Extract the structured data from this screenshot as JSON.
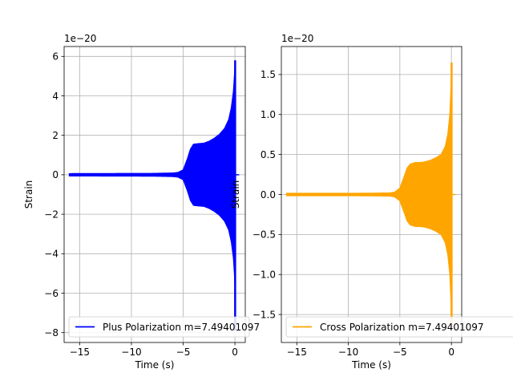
{
  "chart_data": [
    {
      "type": "line",
      "title": "",
      "xlabel": "Time (s)",
      "ylabel": "Strain",
      "scale_label": "1e−20",
      "xlim": [
        -16.5,
        1.0
      ],
      "ylim": [
        -8.5,
        6.5
      ],
      "xticks": [
        -15,
        -10,
        -5,
        0
      ],
      "xtick_labels": [
        "−15",
        "−10",
        "−5",
        "0"
      ],
      "yticks": [
        -8,
        -6,
        -4,
        -2,
        0,
        2,
        4,
        6
      ],
      "ytick_labels": [
        "−8",
        "−6",
        "−4",
        "−2",
        "0",
        "2",
        "4",
        "6"
      ],
      "grid": true,
      "legend_position": "lower-left",
      "color": "#0000ff",
      "series": [
        {
          "name": "Plus Polarization m=7.49401097",
          "envelope": {
            "x": [
              -16,
              -8,
              -6,
              -5.5,
              -5,
              -4.6,
              -4.3,
              -4,
              -3.5,
              -3,
              -2.5,
              -2,
              -1.5,
              -1,
              -0.6,
              -0.35,
              -0.15,
              -0.05,
              0.02
            ],
            "amp": [
              0.06,
              0.07,
              0.09,
              0.12,
              0.25,
              0.8,
              1.3,
              1.55,
              1.58,
              1.6,
              1.7,
              1.85,
              2.05,
              2.35,
              2.8,
              3.4,
              4.2,
              5.0,
              5.8
            ]
          },
          "min_value": -7.9,
          "peak_time": 0.02
        }
      ]
    },
    {
      "type": "line",
      "title": "",
      "xlabel": "Time (s)",
      "ylabel": "Strain",
      "scale_label": "1e−20",
      "xlim": [
        -16.5,
        1.0
      ],
      "ylim": [
        -1.85,
        1.85
      ],
      "xticks": [
        -15,
        -10,
        -5,
        0
      ],
      "xtick_labels": [
        "−15",
        "−10",
        "−5",
        "0"
      ],
      "yticks": [
        -1.5,
        -1.0,
        -0.5,
        0.0,
        0.5,
        1.0,
        1.5
      ],
      "ytick_labels": [
        "−1.5",
        "−1.0",
        "−0.5",
        "0.0",
        "0.5",
        "1.0",
        "1.5"
      ],
      "grid": true,
      "legend_position": "lower-left",
      "color": "#ffa500",
      "series": [
        {
          "name": "Cross Polarization m=7.49401097",
          "envelope": {
            "x": [
              -16,
              -8,
              -6,
              -5.5,
              -5,
              -4.6,
              -4.3,
              -4,
              -3.5,
              -3,
              -2.5,
              -2,
              -1.5,
              -1,
              -0.6,
              -0.35,
              -0.15,
              -0.05,
              0.02
            ],
            "amp": [
              0.015,
              0.016,
              0.02,
              0.03,
              0.08,
              0.22,
              0.33,
              0.38,
              0.4,
              0.4,
              0.41,
              0.43,
              0.46,
              0.5,
              0.6,
              0.75,
              1.0,
              1.3,
              1.65
            ]
          },
          "min_value": -1.65,
          "peak_time": 0.02
        }
      ]
    }
  ]
}
